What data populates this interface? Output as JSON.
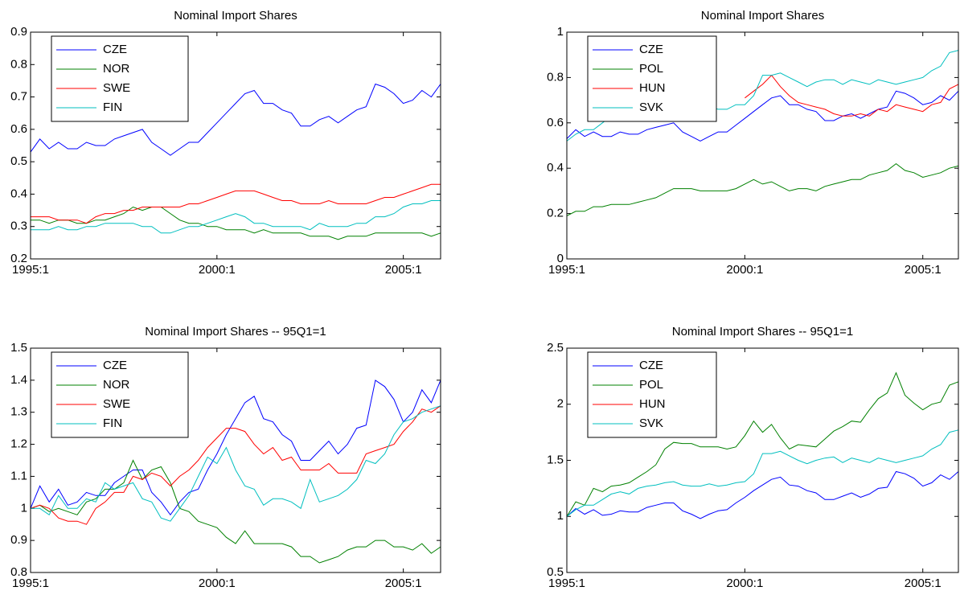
{
  "chart_data": [
    {
      "type": "line",
      "title": "Nominal Import Shares",
      "categories": [
        "1995:1",
        null,
        null,
        null,
        null,
        null,
        null,
        null,
        null,
        null,
        null,
        null,
        null,
        null,
        null,
        null,
        null,
        null,
        null,
        null,
        "2000:1",
        null,
        null,
        null,
        null,
        null,
        null,
        null,
        null,
        null,
        null,
        null,
        null,
        null,
        null,
        null,
        null,
        null,
        null,
        null,
        "2005:1",
        null,
        null,
        null,
        null
      ],
      "ylim": [
        0.2,
        0.9
      ],
      "yticks": [
        0.2,
        0.3,
        0.4,
        0.5,
        0.6,
        0.7,
        0.8,
        0.9
      ],
      "legend": "upper left",
      "series": [
        {
          "name": "CZE",
          "color": "#0000ff",
          "values": [
            0.53,
            0.57,
            0.54,
            0.56,
            0.54,
            0.54,
            0.56,
            0.55,
            0.55,
            0.57,
            0.58,
            0.59,
            0.6,
            0.56,
            0.54,
            0.52,
            0.54,
            0.56,
            0.56,
            0.59,
            0.62,
            0.65,
            0.68,
            0.71,
            0.72,
            0.68,
            0.68,
            0.66,
            0.65,
            0.61,
            0.61,
            0.63,
            0.64,
            0.62,
            0.64,
            0.66,
            0.67,
            0.74,
            0.73,
            0.71,
            0.68,
            0.69,
            0.72,
            0.7,
            0.74
          ]
        },
        {
          "name": "NOR",
          "color": "#008000",
          "values": [
            0.32,
            0.32,
            0.31,
            0.32,
            0.32,
            0.31,
            0.31,
            0.32,
            0.32,
            0.33,
            0.34,
            0.36,
            0.35,
            0.36,
            0.36,
            0.34,
            0.32,
            0.31,
            0.31,
            0.3,
            0.3,
            0.29,
            0.29,
            0.29,
            0.28,
            0.29,
            0.28,
            0.28,
            0.28,
            0.28,
            0.27,
            0.27,
            0.27,
            0.26,
            0.27,
            0.27,
            0.27,
            0.28,
            0.28,
            0.28,
            0.28,
            0.28,
            0.28,
            0.27,
            0.28
          ]
        },
        {
          "name": "SWE",
          "color": "#ff0000",
          "values": [
            0.33,
            0.33,
            0.33,
            0.32,
            0.32,
            0.32,
            0.31,
            0.33,
            0.34,
            0.34,
            0.35,
            0.35,
            0.36,
            0.36,
            0.36,
            0.36,
            0.36,
            0.37,
            0.37,
            0.38,
            0.39,
            0.4,
            0.41,
            0.41,
            0.41,
            0.4,
            0.39,
            0.38,
            0.38,
            0.37,
            0.37,
            0.37,
            0.38,
            0.37,
            0.37,
            0.37,
            0.37,
            0.38,
            0.39,
            0.39,
            0.4,
            0.41,
            0.42,
            0.43,
            0.43
          ]
        },
        {
          "name": "FIN",
          "color": "#00bfbf",
          "values": [
            0.29,
            0.29,
            0.29,
            0.3,
            0.29,
            0.29,
            0.3,
            0.3,
            0.31,
            0.31,
            0.31,
            0.31,
            0.3,
            0.3,
            0.28,
            0.28,
            0.29,
            0.3,
            0.3,
            0.31,
            0.32,
            0.33,
            0.34,
            0.33,
            0.31,
            0.31,
            0.3,
            0.3,
            0.3,
            0.3,
            0.29,
            0.31,
            0.3,
            0.3,
            0.3,
            0.31,
            0.31,
            0.33,
            0.33,
            0.34,
            0.36,
            0.37,
            0.37,
            0.38,
            0.38
          ]
        }
      ]
    },
    {
      "type": "line",
      "title": "Nominal Import Shares",
      "categories": [
        "1995:1",
        null,
        null,
        null,
        null,
        null,
        null,
        null,
        null,
        null,
        null,
        null,
        null,
        null,
        null,
        null,
        null,
        null,
        null,
        null,
        "2000:1",
        null,
        null,
        null,
        null,
        null,
        null,
        null,
        null,
        null,
        null,
        null,
        null,
        null,
        null,
        null,
        null,
        null,
        null,
        null,
        "2005:1",
        null,
        null,
        null,
        null
      ],
      "ylim": [
        0,
        1
      ],
      "yticks": [
        0,
        0.2,
        0.4,
        0.6,
        0.8,
        1
      ],
      "legend": "upper left",
      "series": [
        {
          "name": "CZE",
          "color": "#0000ff",
          "values": [
            0.53,
            0.57,
            0.54,
            0.56,
            0.54,
            0.54,
            0.56,
            0.55,
            0.55,
            0.57,
            0.58,
            0.59,
            0.6,
            0.56,
            0.54,
            0.52,
            0.54,
            0.56,
            0.56,
            0.59,
            0.62,
            0.65,
            0.68,
            0.71,
            0.72,
            0.68,
            0.68,
            0.66,
            0.65,
            0.61,
            0.61,
            0.63,
            0.64,
            0.62,
            0.64,
            0.66,
            0.67,
            0.74,
            0.73,
            0.71,
            0.68,
            0.69,
            0.72,
            0.7,
            0.74
          ]
        },
        {
          "name": "POL",
          "color": "#008000",
          "values": [
            0.19,
            0.21,
            0.21,
            0.23,
            0.23,
            0.24,
            0.24,
            0.24,
            0.25,
            0.26,
            0.27,
            0.29,
            0.31,
            0.31,
            0.31,
            0.3,
            0.3,
            0.3,
            0.3,
            0.31,
            0.33,
            0.35,
            0.33,
            0.34,
            0.32,
            0.3,
            0.31,
            0.31,
            0.3,
            0.32,
            0.33,
            0.34,
            0.35,
            0.35,
            0.37,
            0.38,
            0.39,
            0.42,
            0.39,
            0.38,
            0.36,
            0.37,
            0.38,
            0.4,
            0.41
          ]
        },
        {
          "name": "HUN",
          "color": "#ff0000",
          "values": [
            null,
            null,
            null,
            null,
            null,
            null,
            null,
            null,
            null,
            null,
            null,
            null,
            null,
            null,
            null,
            null,
            null,
            null,
            null,
            null,
            0.71,
            0.74,
            0.77,
            0.81,
            0.76,
            0.72,
            0.69,
            0.68,
            0.67,
            0.66,
            0.64,
            0.63,
            0.63,
            0.64,
            0.63,
            0.66,
            0.65,
            0.68,
            0.67,
            0.66,
            0.65,
            0.68,
            0.69,
            0.75,
            0.77
          ]
        },
        {
          "name": "SVK",
          "color": "#00bfbf",
          "values": [
            0.52,
            0.55,
            0.57,
            0.57,
            0.6,
            0.63,
            0.63,
            0.62,
            0.65,
            0.66,
            0.67,
            0.68,
            0.68,
            0.66,
            0.66,
            0.66,
            0.67,
            0.66,
            0.66,
            0.68,
            0.68,
            0.72,
            0.81,
            0.81,
            0.82,
            0.8,
            0.78,
            0.76,
            0.78,
            0.79,
            0.79,
            0.77,
            0.79,
            0.78,
            0.77,
            0.79,
            0.78,
            0.77,
            0.78,
            0.79,
            0.8,
            0.83,
            0.85,
            0.91,
            0.92
          ]
        }
      ]
    },
    {
      "type": "line",
      "title": "Nominal Import Shares -- 95Q1=1",
      "categories": [
        "1995:1",
        null,
        null,
        null,
        null,
        null,
        null,
        null,
        null,
        null,
        null,
        null,
        null,
        null,
        null,
        null,
        null,
        null,
        null,
        null,
        "2000:1",
        null,
        null,
        null,
        null,
        null,
        null,
        null,
        null,
        null,
        null,
        null,
        null,
        null,
        null,
        null,
        null,
        null,
        null,
        null,
        "2005:1",
        null,
        null,
        null,
        null
      ],
      "ylim": [
        0.8,
        1.5
      ],
      "yticks": [
        0.8,
        0.9,
        1,
        1.1,
        1.2,
        1.3,
        1.4,
        1.5
      ],
      "legend": "upper left",
      "series": [
        {
          "name": "CZE",
          "color": "#0000ff",
          "values": [
            1,
            1.07,
            1.02,
            1.06,
            1.01,
            1.02,
            1.05,
            1.04,
            1.04,
            1.08,
            1.1,
            1.12,
            1.12,
            1.05,
            1.02,
            0.98,
            1.02,
            1.05,
            1.06,
            1.12,
            1.17,
            1.23,
            1.28,
            1.33,
            1.35,
            1.28,
            1.27,
            1.23,
            1.21,
            1.15,
            1.15,
            1.18,
            1.21,
            1.17,
            1.2,
            1.25,
            1.26,
            1.4,
            1.38,
            1.34,
            1.27,
            1.3,
            1.37,
            1.33,
            1.4
          ]
        },
        {
          "name": "NOR",
          "color": "#008000",
          "values": [
            1,
            1.01,
            0.99,
            1.0,
            0.99,
            0.98,
            1.02,
            1.03,
            1.06,
            1.06,
            1.08,
            1.15,
            1.09,
            1.12,
            1.13,
            1.08,
            1.0,
            0.99,
            0.96,
            0.95,
            0.94,
            0.91,
            0.89,
            0.93,
            0.89,
            0.89,
            0.89,
            0.89,
            0.88,
            0.85,
            0.85,
            0.83,
            0.84,
            0.85,
            0.87,
            0.88,
            0.88,
            0.9,
            0.9,
            0.88,
            0.88,
            0.87,
            0.89,
            0.86,
            0.88
          ]
        },
        {
          "name": "SWE",
          "color": "#ff0000",
          "values": [
            1,
            1.01,
            1.0,
            0.97,
            0.96,
            0.96,
            0.95,
            1.0,
            1.02,
            1.05,
            1.05,
            1.1,
            1.09,
            1.11,
            1.1,
            1.07,
            1.1,
            1.12,
            1.15,
            1.19,
            1.22,
            1.25,
            1.25,
            1.24,
            1.2,
            1.17,
            1.19,
            1.15,
            1.16,
            1.12,
            1.12,
            1.12,
            1.14,
            1.11,
            1.11,
            1.11,
            1.17,
            1.18,
            1.19,
            1.2,
            1.24,
            1.27,
            1.31,
            1.3,
            1.32
          ]
        },
        {
          "name": "FIN",
          "color": "#00bfbf",
          "values": [
            1,
            1.0,
            0.98,
            1.04,
            1.0,
            1.0,
            1.03,
            1.02,
            1.08,
            1.06,
            1.07,
            1.08,
            1.03,
            1.02,
            0.97,
            0.96,
            1.0,
            1.04,
            1.1,
            1.16,
            1.14,
            1.19,
            1.12,
            1.07,
            1.06,
            1.01,
            1.03,
            1.03,
            1.02,
            1.0,
            1.09,
            1.02,
            1.03,
            1.04,
            1.06,
            1.09,
            1.15,
            1.14,
            1.17,
            1.23,
            1.27,
            1.28,
            1.3,
            1.31,
            1.32
          ]
        }
      ]
    },
    {
      "type": "line",
      "title": "Nominal Import Shares -- 95Q1=1",
      "categories": [
        "1995:1",
        null,
        null,
        null,
        null,
        null,
        null,
        null,
        null,
        null,
        null,
        null,
        null,
        null,
        null,
        null,
        null,
        null,
        null,
        null,
        "2000:1",
        null,
        null,
        null,
        null,
        null,
        null,
        null,
        null,
        null,
        null,
        null,
        null,
        null,
        null,
        null,
        null,
        null,
        null,
        null,
        "2005:1",
        null,
        null,
        null,
        null
      ],
      "ylim": [
        0.5,
        2.5
      ],
      "yticks": [
        0.5,
        1,
        1.5,
        2,
        2.5
      ],
      "legend": "upper left",
      "series": [
        {
          "name": "CZE",
          "color": "#0000ff",
          "values": [
            1,
            1.07,
            1.02,
            1.06,
            1.01,
            1.02,
            1.05,
            1.04,
            1.04,
            1.08,
            1.1,
            1.12,
            1.12,
            1.05,
            1.02,
            0.98,
            1.02,
            1.05,
            1.06,
            1.12,
            1.17,
            1.23,
            1.28,
            1.33,
            1.35,
            1.28,
            1.27,
            1.23,
            1.21,
            1.15,
            1.15,
            1.18,
            1.21,
            1.17,
            1.2,
            1.25,
            1.26,
            1.4,
            1.38,
            1.34,
            1.27,
            1.3,
            1.37,
            1.33,
            1.4
          ]
        },
        {
          "name": "POL",
          "color": "#008000",
          "values": [
            1,
            1.13,
            1.1,
            1.25,
            1.22,
            1.27,
            1.28,
            1.3,
            1.35,
            1.4,
            1.46,
            1.6,
            1.66,
            1.65,
            1.65,
            1.62,
            1.62,
            1.62,
            1.6,
            1.62,
            1.72,
            1.85,
            1.75,
            1.82,
            1.7,
            1.6,
            1.64,
            1.63,
            1.62,
            1.69,
            1.76,
            1.8,
            1.85,
            1.84,
            1.95,
            2.05,
            2.1,
            2.28,
            2.08,
            2.01,
            1.95,
            2.0,
            2.02,
            2.17,
            2.2
          ]
        },
        {
          "name": "HUN",
          "color": "#ff0000",
          "values": [
            null,
            null,
            null,
            null,
            null,
            null,
            null,
            null,
            null,
            null,
            null,
            null,
            null,
            null,
            null,
            null,
            null,
            null,
            null,
            null,
            null,
            null,
            null,
            null,
            null,
            null,
            null,
            null,
            null,
            null,
            null,
            null,
            null,
            null,
            null,
            null,
            null,
            null,
            null,
            null,
            null,
            null,
            null,
            null,
            null
          ]
        },
        {
          "name": "SVK",
          "color": "#00bfbf",
          "values": [
            1,
            1.06,
            1.1,
            1.1,
            1.15,
            1.2,
            1.22,
            1.2,
            1.25,
            1.27,
            1.28,
            1.3,
            1.31,
            1.28,
            1.27,
            1.27,
            1.29,
            1.27,
            1.28,
            1.3,
            1.31,
            1.38,
            1.56,
            1.56,
            1.58,
            1.54,
            1.5,
            1.47,
            1.5,
            1.52,
            1.53,
            1.48,
            1.52,
            1.5,
            1.48,
            1.52,
            1.5,
            1.48,
            1.5,
            1.52,
            1.54,
            1.6,
            1.64,
            1.75,
            1.77
          ]
        }
      ]
    }
  ]
}
